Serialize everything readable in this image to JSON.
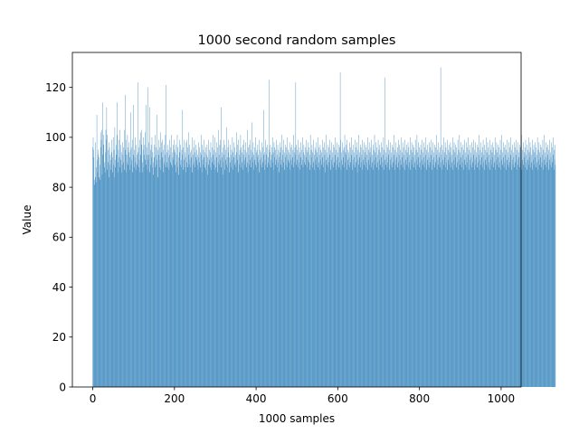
{
  "chart_data": {
    "type": "bar",
    "title": "1000 second random samples",
    "xlabel": "1000 samples",
    "ylabel": "Value",
    "xlim": [
      -49.95,
      1048.95
    ],
    "ylim": [
      0,
      134
    ],
    "xticks": [
      0,
      200,
      400,
      600,
      800,
      1000
    ],
    "xtick_labels": [
      "0",
      "200",
      "400",
      "600",
      "800",
      "1000"
    ],
    "yticks": [
      0,
      20,
      40,
      60,
      80,
      100,
      120
    ],
    "ytick_labels": [
      "0",
      "20",
      "40",
      "60",
      "80",
      "100",
      "120"
    ],
    "grid": false,
    "legend": "none",
    "bar_width_samples": 0.8,
    "series": [
      {
        "values": [
          96,
          100,
          95,
          92,
          83,
          81,
          98,
          84,
          88,
          82,
          109,
          91,
          86,
          95,
          93,
          92,
          84,
          89,
          83,
          102,
          96,
          99,
          103,
          85,
          114,
          93,
          101,
          97,
          88,
          90,
          86,
          94,
          103,
          99,
          112,
          87,
          101,
          95,
          90,
          84,
          98,
          96,
          89,
          93,
          91,
          87,
          99,
          94,
          86,
          92,
          100,
          89,
          95,
          84,
          104,
          91,
          88,
          97,
          93,
          101,
          114,
          90,
          86,
          95,
          99,
          92,
          88,
          103,
          97,
          91,
          94,
          86,
          89,
          98,
          93,
          96,
          90,
          103,
          87,
          95,
          117,
          99,
          86,
          93,
          90,
          101,
          96,
          89,
          94,
          98,
          92,
          87,
          95,
          110,
          89,
          96,
          91,
          99,
          86,
          93,
          113,
          88,
          95,
          92,
          100,
          90,
          87,
          97,
          93,
          89,
          122,
          94,
          88,
          96,
          91,
          99,
          86,
          102,
          93,
          97,
          103,
          90,
          86,
          95,
          100,
          88,
          93,
          97,
          91,
          102,
          113,
          89,
          96,
          93,
          87,
          120,
          91,
          98,
          93,
          86,
          112,
          95,
          89,
          97,
          92,
          100,
          88,
          94,
          90,
          85,
          97,
          92,
          88,
          101,
          93,
          96,
          89,
          109,
          91,
          95,
          84,
          99,
          93,
          88,
          96,
          91,
          102,
          87,
          94,
          98,
          99,
          92,
          86,
          95,
          90,
          97,
          89,
          93,
          101,
          88,
          121,
          94,
          90,
          97,
          88,
          95,
          92,
          87,
          99,
          93,
          90,
          96,
          89,
          101,
          94,
          88,
          92,
          97,
          91,
          95,
          99,
          89,
          94,
          86,
          97,
          93,
          90,
          101,
          88,
          96,
          92,
          85,
          99,
          94,
          89,
          97,
          91,
          88,
          95,
          93,
          111,
          87,
          96,
          91,
          99,
          88,
          94,
          92,
          86,
          98,
          99,
          90,
          96,
          88,
          102,
          93,
          89,
          97,
          91,
          94,
          88,
          95,
          92,
          86,
          100,
          93,
          89,
          96,
          90,
          99,
          94,
          88,
          92,
          97,
          91,
          95,
          89,
          93,
          87,
          98,
          92,
          96,
          90,
          94,
          88,
          101,
          93,
          86,
          97,
          91,
          89,
          95,
          92,
          99,
          88,
          94,
          87,
          96,
          90,
          93,
          97,
          85,
          92,
          99,
          89,
          95,
          91,
          88,
          94,
          98,
          92,
          87,
          96,
          90,
          101,
          93,
          89,
          95,
          91,
          100,
          87,
          94,
          88,
          98,
          92,
          86,
          96,
          90,
          103,
          93,
          89,
          97,
          91,
          99,
          112,
          88,
          94,
          92,
          85,
          96,
          90,
          99,
          93,
          87,
          97,
          91,
          95,
          89,
          104,
          92,
          88,
          96,
          94,
          99,
          86,
          92,
          90,
          97,
          93,
          88,
          95,
          91,
          100,
          87,
          94,
          92,
          98,
          89,
          96,
          90,
          93,
          88,
          102,
          94,
          91,
          97,
          86,
          99,
          93,
          89,
          95,
          92,
          101,
          88,
          96,
          90,
          94,
          97,
          87,
          93,
          99,
          91,
          89,
          95,
          92,
          98,
          88,
          94,
          90,
          103,
          86,
          96,
          93,
          89,
          97,
          91,
          99,
          88,
          95,
          92,
          106,
          94,
          90,
          98,
          87,
          93,
          96,
          91,
          89,
          100,
          94,
          88,
          95,
          92,
          97,
          90,
          93,
          86,
          99,
          91,
          95,
          89,
          94,
          92,
          98,
          88,
          96,
          90,
          93,
          111,
          87,
          94,
          91,
          99,
          89,
          96,
          93,
          88,
          97,
          92,
          90,
          95,
          123,
          89,
          94,
          97,
          91,
          88,
          96,
          93,
          100,
          90,
          94,
          87,
          98,
          92,
          96,
          89,
          95,
          91,
          99,
          88,
          93,
          97,
          90,
          95,
          92,
          86,
          98,
          94,
          89,
          96,
          91,
          101,
          88,
          93,
          95,
          90,
          99,
          87,
          94,
          92,
          97,
          89,
          96,
          93,
          88,
          100,
          91,
          95,
          90,
          94,
          98,
          87,
          93,
          96,
          91,
          89,
          97,
          92,
          95,
          88,
          101,
          94,
          90,
          96,
          93,
          122,
          89,
          97,
          91,
          95,
          88,
          99,
          93,
          90,
          96,
          87,
          94,
          98,
          92,
          89,
          95,
          91,
          100,
          88,
          94,
          97,
          90,
          93,
          96,
          89,
          92,
          99,
          95,
          88,
          94,
          91,
          98,
          90,
          96,
          87,
          93,
          101,
          89,
          95,
          92,
          97,
          88,
          94,
          90,
          99,
          93,
          87,
          96,
          91,
          95,
          89,
          98,
          92,
          94,
          88,
          100,
          90,
          96,
          93,
          87,
          97,
          91,
          95,
          89,
          94,
          99,
          92,
          88,
          96,
          90,
          98,
          93,
          86,
          95,
          91,
          101,
          89,
          94,
          97,
          92,
          88,
          96,
          90,
          99,
          93,
          87,
          95,
          91,
          98,
          89,
          94,
          92,
          97,
          88,
          96,
          90,
          93,
          100,
          87,
          95,
          91,
          98,
          89,
          94,
          92,
          97,
          88,
          96,
          90,
          126,
          99,
          87,
          94,
          91,
          98,
          89,
          95,
          92,
          96,
          88,
          101,
          90,
          94,
          93,
          97,
          87,
          99,
          91,
          95,
          89,
          94,
          92,
          98,
          88,
          96,
          90,
          93,
          100,
          87,
          95,
          91,
          97,
          89,
          94,
          92,
          99,
          88,
          96,
          90,
          93,
          98,
          86,
          95,
          91,
          101,
          89,
          94,
          92,
          97,
          88,
          96,
          90,
          93,
          99,
          87,
          95,
          91,
          98,
          89,
          94,
          92,
          97,
          88,
          96,
          90,
          93,
          100,
          87,
          95,
          91,
          98,
          89,
          94,
          92,
          96,
          88,
          99,
          90,
          93,
          97,
          87,
          95,
          91,
          101,
          89,
          94,
          92,
          98,
          88,
          96,
          90,
          93,
          99,
          87,
          95,
          91,
          97,
          89,
          94,
          92,
          98,
          88,
          96,
          90,
          93,
          100,
          87,
          95,
          91,
          124,
          89,
          94,
          92,
          97,
          88,
          96,
          90,
          93,
          99,
          87,
          95,
          91,
          98,
          89,
          94,
          92,
          97,
          88,
          96,
          90,
          93,
          101,
          87,
          95,
          91,
          98,
          89,
          94,
          92,
          96,
          88,
          99,
          90,
          93,
          97,
          87,
          95,
          91,
          100,
          89,
          94,
          92,
          98,
          88,
          96,
          90,
          93,
          99,
          87,
          95,
          91,
          97,
          89,
          94,
          92,
          98,
          88,
          96,
          90,
          93,
          100,
          87,
          95,
          91,
          98,
          89,
          94,
          92,
          97,
          88,
          96,
          90,
          93,
          99,
          87,
          95,
          91,
          101,
          89,
          94,
          92,
          98,
          88,
          96,
          90,
          93,
          97,
          87,
          95,
          91,
          99,
          89,
          94,
          92,
          98,
          88,
          96,
          90,
          93,
          100,
          87,
          95,
          91,
          97,
          89,
          94,
          92,
          98,
          88,
          96,
          90,
          93,
          99,
          87,
          95,
          91,
          98,
          89,
          94,
          92,
          97,
          88,
          96,
          90,
          93,
          101,
          87,
          95,
          91,
          98,
          89,
          94,
          92,
          96,
          88,
          128,
          90,
          93,
          97,
          87,
          95,
          91,
          100,
          89,
          94,
          92,
          98,
          88,
          96,
          90,
          93,
          99,
          87,
          95,
          91,
          97,
          89,
          94,
          92,
          98,
          88,
          96,
          90,
          93,
          100,
          87,
          95,
          91,
          98,
          89,
          94,
          92,
          97,
          88,
          96,
          90,
          93,
          99,
          87,
          95,
          91,
          101,
          89,
          94,
          92,
          98,
          88,
          96,
          90,
          93,
          97,
          87,
          95,
          91,
          99,
          89,
          94,
          92,
          98,
          88,
          96,
          90,
          93,
          100,
          87,
          95,
          91,
          97,
          89,
          94,
          92,
          98,
          88,
          96,
          90,
          93,
          99,
          87,
          95,
          91,
          98,
          89,
          94,
          92,
          97,
          88,
          96,
          90,
          93,
          101,
          87,
          95,
          91,
          98,
          89,
          94,
          92,
          96,
          88,
          99,
          90,
          93,
          97,
          87,
          95,
          91,
          100,
          89,
          94,
          92,
          98,
          88,
          96,
          90,
          93,
          99,
          87,
          95,
          91,
          97,
          89,
          94,
          92,
          98,
          88,
          96,
          90,
          93,
          100,
          87,
          95,
          91,
          98,
          89,
          94,
          92,
          97,
          88,
          96,
          90,
          93,
          99,
          87,
          95,
          91,
          101,
          89,
          94,
          92,
          98,
          88,
          96,
          90,
          93,
          97,
          87,
          95,
          91,
          99,
          89,
          94,
          92,
          98,
          88,
          96,
          90,
          93,
          100,
          87,
          95,
          91,
          97,
          89,
          94,
          92,
          98,
          88,
          96,
          90,
          93,
          99,
          87,
          95,
          91,
          98,
          89,
          94,
          92,
          97,
          88,
          96,
          90,
          93,
          101,
          87,
          95,
          91,
          98,
          89,
          94,
          92,
          96,
          88,
          99,
          90,
          93,
          97,
          87,
          95,
          91,
          100,
          89,
          94,
          92,
          98,
          88,
          96,
          90,
          93,
          99,
          87,
          95,
          91,
          97,
          89,
          94,
          92,
          98,
          88,
          96,
          90,
          93,
          100,
          87,
          95,
          91,
          98,
          89,
          94,
          92,
          97,
          88,
          96,
          90,
          93,
          99,
          87,
          95,
          91,
          101,
          89,
          94,
          92,
          98,
          88,
          96,
          90,
          93,
          97,
          87,
          95,
          91,
          99,
          89,
          94,
          92,
          98,
          88,
          96,
          90,
          93,
          100,
          87,
          95,
          91,
          97,
          89
        ],
        "color": "#1f77b4"
      }
    ]
  }
}
